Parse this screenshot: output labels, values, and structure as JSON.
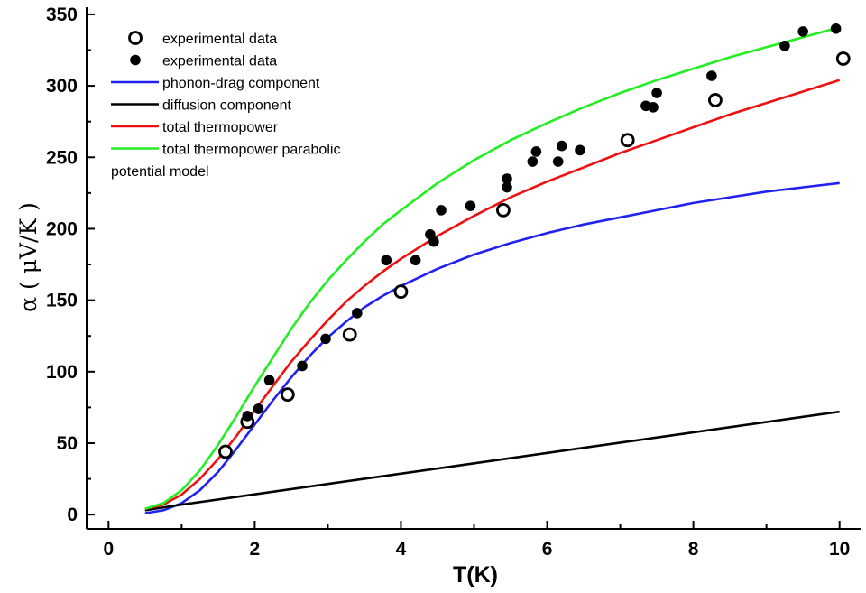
{
  "chart_data": {
    "type": "scatter",
    "xlabel": "T(K)",
    "ylabel": "α ( μV/K )",
    "xlim": [
      -0.3,
      10.3
    ],
    "ylim": [
      -10,
      355
    ],
    "xticks": [
      0,
      2,
      4,
      6,
      8,
      10
    ],
    "xtick_labels": [
      "0",
      "2",
      "4",
      "6",
      "8",
      "10"
    ],
    "yticks": [
      0,
      50,
      100,
      150,
      200,
      250,
      300,
      350
    ],
    "ytick_labels": [
      "0",
      "50",
      "100",
      "150",
      "200",
      "250",
      "300",
      "350"
    ],
    "grid": false,
    "legend_position": "top-left",
    "series": [
      {
        "name": "experimental data",
        "kind": "scatter-open",
        "color": "#000000",
        "points": [
          [
            1.6,
            44
          ],
          [
            1.9,
            65
          ],
          [
            2.45,
            84
          ],
          [
            3.3,
            126
          ],
          [
            4.0,
            156
          ],
          [
            5.4,
            213
          ],
          [
            7.1,
            262
          ],
          [
            8.3,
            290
          ],
          [
            10.05,
            319
          ]
        ]
      },
      {
        "name": "experimental data",
        "kind": "scatter-filled",
        "color": "#000000",
        "points": [
          [
            1.9,
            69
          ],
          [
            2.05,
            74
          ],
          [
            2.2,
            94
          ],
          [
            2.65,
            104
          ],
          [
            2.97,
            123
          ],
          [
            3.4,
            141
          ],
          [
            3.8,
            178
          ],
          [
            4.2,
            178
          ],
          [
            4.4,
            196
          ],
          [
            4.45,
            191
          ],
          [
            4.55,
            213
          ],
          [
            4.95,
            216
          ],
          [
            5.45,
            229
          ],
          [
            5.45,
            235
          ],
          [
            5.8,
            247
          ],
          [
            5.85,
            254
          ],
          [
            6.15,
            247
          ],
          [
            6.2,
            258
          ],
          [
            6.45,
            255
          ],
          [
            7.35,
            286
          ],
          [
            7.45,
            285
          ],
          [
            7.5,
            295
          ],
          [
            8.25,
            307
          ],
          [
            9.25,
            328
          ],
          [
            9.5,
            338
          ],
          [
            9.95,
            340
          ]
        ]
      },
      {
        "name": "phonon-drag component",
        "kind": "line",
        "color": "#2222ee",
        "points": [
          [
            0.5,
            1
          ],
          [
            0.75,
            3
          ],
          [
            1.0,
            8
          ],
          [
            1.25,
            17
          ],
          [
            1.5,
            30
          ],
          [
            1.75,
            46
          ],
          [
            2.0,
            63
          ],
          [
            2.25,
            80
          ],
          [
            2.5,
            96
          ],
          [
            2.75,
            111
          ],
          [
            3.0,
            124
          ],
          [
            3.25,
            135
          ],
          [
            3.5,
            145
          ],
          [
            3.75,
            153
          ],
          [
            4.0,
            160
          ],
          [
            4.5,
            172
          ],
          [
            5.0,
            182
          ],
          [
            5.5,
            190
          ],
          [
            6.0,
            197
          ],
          [
            6.5,
            203
          ],
          [
            7.0,
            208
          ],
          [
            7.5,
            213
          ],
          [
            8.0,
            218
          ],
          [
            8.5,
            222
          ],
          [
            9.0,
            226
          ],
          [
            9.5,
            229
          ],
          [
            10.0,
            232
          ]
        ]
      },
      {
        "name": "diffusion component",
        "kind": "line",
        "color": "#000000",
        "points": [
          [
            0.5,
            3
          ],
          [
            1.0,
            7
          ],
          [
            10.0,
            72
          ]
        ]
      },
      {
        "name": "total thermopower",
        "kind": "line",
        "color": "#ee1111",
        "points": [
          [
            0.5,
            4
          ],
          [
            0.75,
            7
          ],
          [
            1.0,
            14
          ],
          [
            1.25,
            25
          ],
          [
            1.5,
            39
          ],
          [
            1.75,
            55
          ],
          [
            2.0,
            73
          ],
          [
            2.25,
            90
          ],
          [
            2.5,
            107
          ],
          [
            2.75,
            122
          ],
          [
            3.0,
            136
          ],
          [
            3.25,
            149
          ],
          [
            3.5,
            160
          ],
          [
            3.75,
            170
          ],
          [
            4.0,
            179
          ],
          [
            4.5,
            195
          ],
          [
            5.0,
            209
          ],
          [
            5.5,
            222
          ],
          [
            6.0,
            233
          ],
          [
            6.5,
            243
          ],
          [
            7.0,
            253
          ],
          [
            7.5,
            262
          ],
          [
            8.0,
            271
          ],
          [
            8.5,
            280
          ],
          [
            9.0,
            288
          ],
          [
            9.5,
            296
          ],
          [
            10.0,
            304
          ]
        ]
      },
      {
        "name": "total thermopower parabolic",
        "kind": "line",
        "color": "#22ee22",
        "points": [
          [
            0.5,
            4
          ],
          [
            0.75,
            8
          ],
          [
            1.0,
            17
          ],
          [
            1.25,
            31
          ],
          [
            1.5,
            49
          ],
          [
            1.75,
            69
          ],
          [
            2.0,
            90
          ],
          [
            2.25,
            110
          ],
          [
            2.5,
            130
          ],
          [
            2.75,
            148
          ],
          [
            3.0,
            164
          ],
          [
            3.25,
            178
          ],
          [
            3.5,
            191
          ],
          [
            3.75,
            203
          ],
          [
            4.0,
            213
          ],
          [
            4.5,
            232
          ],
          [
            5.0,
            248
          ],
          [
            5.5,
            262
          ],
          [
            6.0,
            274
          ],
          [
            6.5,
            285
          ],
          [
            7.0,
            295
          ],
          [
            7.5,
            304
          ],
          [
            8.0,
            312
          ],
          [
            8.5,
            320
          ],
          [
            9.0,
            327
          ],
          [
            9.5,
            334
          ],
          [
            10.0,
            341
          ]
        ]
      }
    ],
    "legend_extra_text": "potential model"
  }
}
